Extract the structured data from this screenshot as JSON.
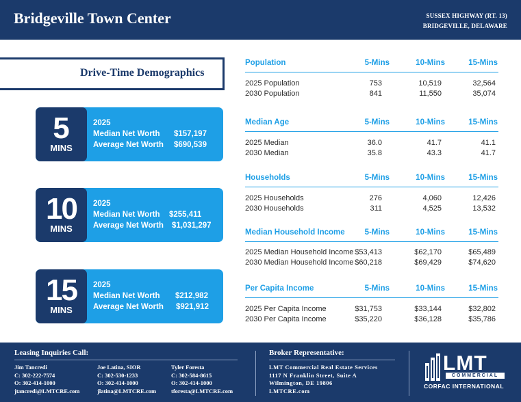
{
  "header": {
    "title": "Bridgeville Town Center",
    "address_line1": "SUSSEX HIGHWAY (RT. 13)",
    "address_line2": "BRIDGEVILLE, DELAWARE"
  },
  "drive_time": {
    "title": "Drive-Time Demographics",
    "cards": [
      {
        "number": "5",
        "unit": "MINS",
        "year": "2025",
        "median_label": "Median Net Worth",
        "median_value": "$157,197",
        "avg_label": "Average Net Worth",
        "avg_value": "$690,539"
      },
      {
        "number": "10",
        "unit": "MINS",
        "year": "2025",
        "median_label": "Median Net Worth",
        "median_value": "$255,411",
        "avg_label": "Average Net Worth",
        "avg_value": "$1,031,297"
      },
      {
        "number": "15",
        "unit": "MINS",
        "year": "2025",
        "median_label": "Median Net Worth",
        "median_value": "$212,982",
        "avg_label": "Average Net Worth",
        "avg_value": "$921,912"
      }
    ]
  },
  "tables": [
    {
      "title": "Population",
      "cols": [
        "5-Mins",
        "10-Mins",
        "15-Mins"
      ],
      "rows": [
        {
          "label": "2025 Population",
          "values": [
            "753",
            "10,519",
            "32,564"
          ]
        },
        {
          "label": "2030 Population",
          "values": [
            "841",
            "11,550",
            "35,074"
          ]
        }
      ]
    },
    {
      "title": "Median Age",
      "cols": [
        "5-Mins",
        "10-Mins",
        "15-Mins"
      ],
      "rows": [
        {
          "label": "2025 Median",
          "values": [
            "36.0",
            "41.7",
            "41.1"
          ]
        },
        {
          "label": "2030 Median",
          "values": [
            "35.8",
            "43.3",
            "41.7"
          ]
        }
      ]
    },
    {
      "title": "Households",
      "cols": [
        "5-Mins",
        "10-Mins",
        "15-Mins"
      ],
      "rows": [
        {
          "label": "2025 Households",
          "values": [
            "276",
            "4,060",
            "12,426"
          ]
        },
        {
          "label": "2030 Households",
          "values": [
            "311",
            "4,525",
            "13,532"
          ]
        }
      ]
    },
    {
      "title": "Median Household Income",
      "cols": [
        "5-Mins",
        "10-Mins",
        "15-Mins"
      ],
      "rows": [
        {
          "label": "2025 Median Household Income",
          "values": [
            "$53,413",
            "$62,170",
            "$65,489"
          ]
        },
        {
          "label": "2030 Median Household Income",
          "values": [
            "$60,218",
            "$69,429",
            "$74,620"
          ]
        }
      ]
    },
    {
      "title": "Per Capita Income",
      "cols": [
        "5-Mins",
        "10-Mins",
        "15-Mins"
      ],
      "rows": [
        {
          "label": "2025 Per Capita Income",
          "values": [
            "$31,753",
            "$33,144",
            "$32,802"
          ]
        },
        {
          "label": "2030 Per Capita Income",
          "values": [
            "$35,220",
            "$36,128",
            "$35,786"
          ]
        }
      ]
    }
  ],
  "footer": {
    "leasing_title": "Leasing Inquiries Call:",
    "contacts": [
      {
        "name": "Jim Tancredi",
        "cell": "C: 302-222-7574",
        "office": "O: 302-414-1000",
        "email": "jtancredi@LMTCRE.com"
      },
      {
        "name": "Joe Latina, SIOR",
        "cell": "C: 302-530-1233",
        "office": "O: 302-414-1000",
        "email": "jlatina@LMTCRE.com"
      },
      {
        "name": "Tyler Foresta",
        "cell": "C: 302-584-8615",
        "office": "O: 302-414-1000",
        "email": "tforesta@LMTCRE.com"
      }
    ],
    "broker_title": "Broker Representative:",
    "broker_lines": [
      "LMT Commercial Real Estate Services",
      "1117 N Franklin Street, Suite A",
      "Wilmington, DE 19806",
      "LMTCRE.com"
    ],
    "logo": {
      "main": "LMT",
      "sub": "COMMERCIAL",
      "tagline": "CORFAC INTERNATIONAL"
    }
  },
  "colors": {
    "navy": "#1b3a6b",
    "blue": "#1e9fe6",
    "white": "#ffffff"
  }
}
